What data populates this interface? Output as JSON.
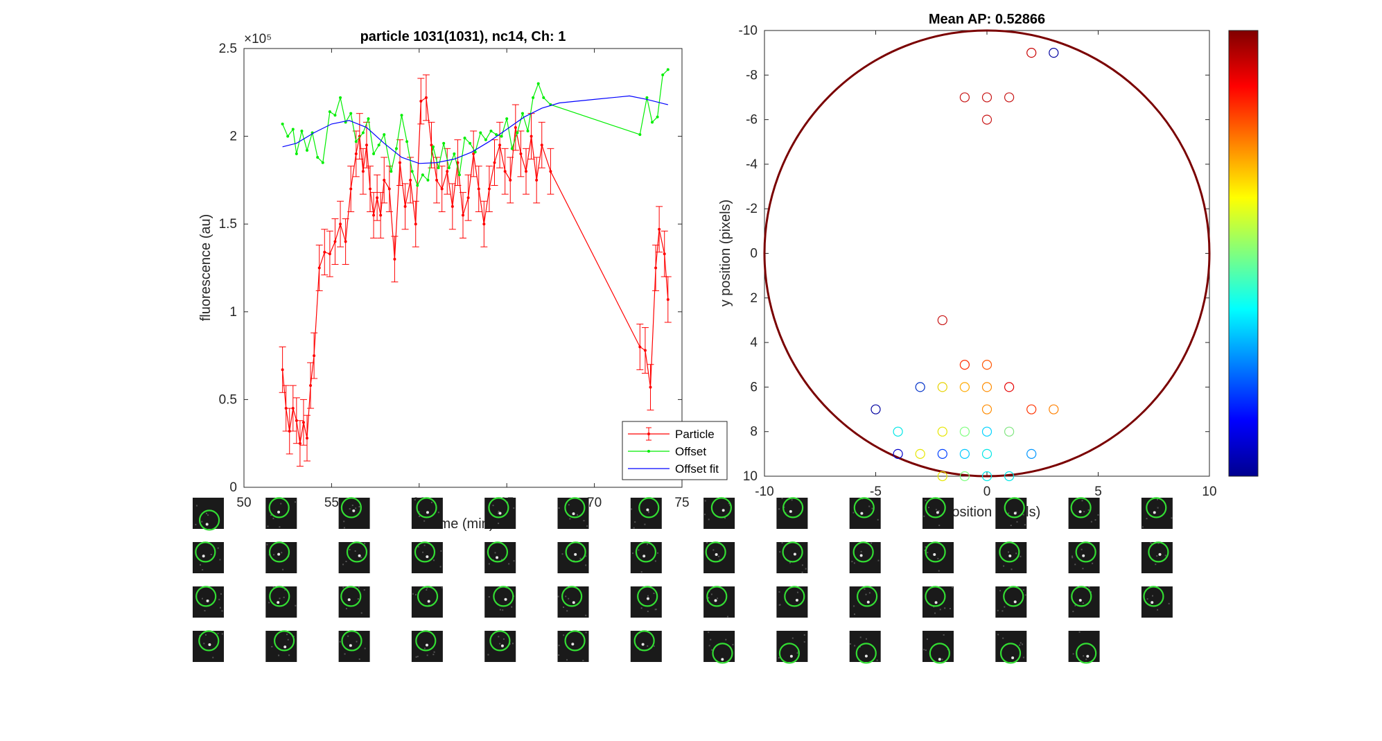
{
  "chart_data": [
    {
      "type": "line",
      "title": "particle 1031(1031), nc14, Ch: 1",
      "xlabel": "time (min)",
      "ylabel": "fluorescence (au)",
      "y_exponent_label": "×10⁵",
      "xlim": [
        50,
        75
      ],
      "ylim": [
        0,
        250000
      ],
      "xticks": [
        "50",
        "55",
        "60",
        "65",
        "70",
        "75"
      ],
      "yticks": [
        "0",
        "0.5",
        "1",
        "1.5",
        "2",
        "2.5"
      ],
      "legend_position": "bottom-right",
      "series": [
        {
          "name": "Particle",
          "color": "#ff0000",
          "error_bars": true,
          "x": [
            52.2,
            52.4,
            52.6,
            52.8,
            53.0,
            53.2,
            53.4,
            53.6,
            53.8,
            54.0,
            54.3,
            54.6,
            54.9,
            55.2,
            55.5,
            55.8,
            56.1,
            56.4,
            56.6,
            56.8,
            57.0,
            57.2,
            57.4,
            57.6,
            57.8,
            58.0,
            58.3,
            58.6,
            58.9,
            59.2,
            59.5,
            59.8,
            60.1,
            60.4,
            60.7,
            61.0,
            61.3,
            61.6,
            61.9,
            62.2,
            62.5,
            62.8,
            63.1,
            63.4,
            63.7,
            64.0,
            64.3,
            64.6,
            64.9,
            65.2,
            65.5,
            65.8,
            66.1,
            66.4,
            66.7,
            67.0,
            67.5,
            72.6,
            72.9,
            73.2,
            73.5,
            73.7,
            74.0,
            74.2
          ],
          "y": [
            67000,
            45000,
            32000,
            45000,
            38000,
            25000,
            37000,
            28000,
            58000,
            75000,
            125000,
            134000,
            133000,
            140000,
            150000,
            140000,
            170000,
            190000,
            200000,
            180000,
            195000,
            170000,
            155000,
            165000,
            155000,
            175000,
            170000,
            130000,
            185000,
            160000,
            175000,
            150000,
            220000,
            222000,
            195000,
            175000,
            170000,
            180000,
            160000,
            185000,
            155000,
            165000,
            190000,
            170000,
            150000,
            170000,
            185000,
            195000,
            180000,
            175000,
            205000,
            190000,
            180000,
            200000,
            175000,
            195000,
            180000,
            80000,
            78000,
            57000,
            125000,
            147000,
            133000,
            107000
          ],
          "yerr": [
            13000,
            13000,
            13000,
            13000,
            13000,
            13000,
            13000,
            13000,
            13000,
            13000,
            13000,
            13000,
            13000,
            13000,
            13000,
            13000,
            13000,
            13000,
            13000,
            13000,
            13000,
            13000,
            13000,
            13000,
            13000,
            13000,
            13000,
            13000,
            13000,
            13000,
            13000,
            13000,
            13000,
            13000,
            13000,
            13000,
            13000,
            13000,
            13000,
            13000,
            13000,
            13000,
            13000,
            13000,
            13000,
            13000,
            13000,
            13000,
            13000,
            13000,
            13000,
            13000,
            13000,
            13000,
            13000,
            13000,
            13000,
            13000,
            13000,
            13000,
            13000,
            13000,
            13000,
            13000
          ]
        },
        {
          "name": "Offset",
          "color": "#00ee00",
          "x": [
            52.2,
            52.5,
            52.8,
            53.0,
            53.3,
            53.6,
            53.9,
            54.2,
            54.5,
            54.9,
            55.2,
            55.5,
            55.8,
            56.1,
            56.4,
            56.8,
            57.1,
            57.4,
            57.7,
            58.0,
            58.4,
            58.7,
            59.0,
            59.3,
            59.6,
            59.9,
            60.2,
            60.5,
            60.8,
            61.1,
            61.4,
            61.7,
            62.0,
            62.3,
            62.6,
            62.9,
            63.2,
            63.5,
            63.8,
            64.1,
            64.4,
            64.7,
            65.0,
            65.3,
            65.6,
            65.9,
            66.2,
            66.5,
            66.8,
            67.1,
            67.5,
            72.6,
            73.0,
            73.3,
            73.6,
            73.9,
            74.2
          ],
          "y": [
            207000,
            200000,
            204000,
            190000,
            203000,
            192000,
            202000,
            188000,
            185000,
            214000,
            212000,
            222000,
            208000,
            213000,
            197000,
            202000,
            210000,
            190000,
            195000,
            201000,
            180000,
            193000,
            212000,
            197000,
            180000,
            172000,
            178000,
            175000,
            194000,
            182000,
            196000,
            182000,
            190000,
            178000,
            199000,
            196000,
            191000,
            202000,
            198000,
            203000,
            201000,
            200000,
            210000,
            193000,
            202000,
            213000,
            203000,
            222000,
            230000,
            222000,
            218000,
            201000,
            222000,
            208000,
            211000,
            235000,
            238000
          ]
        },
        {
          "name": "Offset fit",
          "color": "#0000ff",
          "x": [
            52.2,
            53,
            54,
            55,
            56,
            57,
            58,
            59,
            60,
            61,
            62,
            63,
            64,
            65,
            66,
            67,
            68,
            70,
            72,
            73,
            74,
            74.2
          ],
          "y": [
            194000,
            196000,
            202000,
            207000,
            209000,
            205000,
            196000,
            188000,
            184500,
            185000,
            187000,
            191000,
            197000,
            204000,
            211000,
            216000,
            219000,
            221000,
            223000,
            221000,
            218500,
            218000
          ]
        }
      ]
    },
    {
      "type": "scatter",
      "title": "Mean AP: 0.52866",
      "xlabel": "x position (pixels)",
      "ylabel": "y position (pixels)",
      "xlim": [
        -10,
        10
      ],
      "ylim": [
        10,
        -10
      ],
      "xticks": [
        "-10",
        "-5",
        "0",
        "5",
        "10"
      ],
      "yticks": [
        "-10",
        "-8",
        "-6",
        "-4",
        "-2",
        "0",
        "2",
        "4",
        "6",
        "8",
        "10"
      ],
      "circle_radius": 10,
      "circle_color": "#7a0000",
      "colorbar": true,
      "points": [
        {
          "x": 2,
          "y": -9,
          "color": "#c80000"
        },
        {
          "x": 3,
          "y": -9,
          "color": "#00009f"
        },
        {
          "x": -1,
          "y": -7,
          "color": "#c81414"
        },
        {
          "x": 0,
          "y": -7,
          "color": "#c81414"
        },
        {
          "x": 1,
          "y": -7,
          "color": "#c81414"
        },
        {
          "x": 0,
          "y": -6,
          "color": "#c81414"
        },
        {
          "x": -2,
          "y": 3,
          "color": "#c81414"
        },
        {
          "x": -1,
          "y": 5,
          "color": "#ff2a00"
        },
        {
          "x": 0,
          "y": 5,
          "color": "#ff5500"
        },
        {
          "x": -3,
          "y": 6,
          "color": "#0030c8"
        },
        {
          "x": -2,
          "y": 6,
          "color": "#e6d200"
        },
        {
          "x": -1,
          "y": 6,
          "color": "#ffaa00"
        },
        {
          "x": 0,
          "y": 6,
          "color": "#ff8c00"
        },
        {
          "x": 1,
          "y": 6,
          "color": "#e60000"
        },
        {
          "x": -5,
          "y": 7,
          "color": "#0000a0"
        },
        {
          "x": 0,
          "y": 7,
          "color": "#ff8c00"
        },
        {
          "x": 2,
          "y": 7,
          "color": "#ff3300"
        },
        {
          "x": 3,
          "y": 7,
          "color": "#ff8000"
        },
        {
          "x": -4,
          "y": 8,
          "color": "#00e6e6"
        },
        {
          "x": -2,
          "y": 8,
          "color": "#e6e600"
        },
        {
          "x": -1,
          "y": 8,
          "color": "#80ff80"
        },
        {
          "x": 0,
          "y": 8,
          "color": "#00d2ff"
        },
        {
          "x": 1,
          "y": 8,
          "color": "#80e680"
        },
        {
          "x": -4,
          "y": 9,
          "color": "#0000c8"
        },
        {
          "x": -3,
          "y": 9,
          "color": "#e6e600"
        },
        {
          "x": -2,
          "y": 9,
          "color": "#0040ff"
        },
        {
          "x": -1,
          "y": 9,
          "color": "#00c8ff"
        },
        {
          "x": 0,
          "y": 9,
          "color": "#00e6e6"
        },
        {
          "x": 2,
          "y": 9,
          "color": "#0096ff"
        },
        {
          "x": 0,
          "y": 10,
          "color": "#00e6e6"
        },
        {
          "x": 1,
          "y": 10,
          "color": "#00e6e6"
        },
        {
          "x": -2,
          "y": 10,
          "color": "#e6e600"
        },
        {
          "x": -1,
          "y": 10,
          "color": "#80ff80"
        }
      ]
    }
  ],
  "thumbnails": {
    "rows": [
      14,
      14,
      14,
      13
    ],
    "circle_color": "#33dd33",
    "background_color": "#1a1a1a"
  }
}
